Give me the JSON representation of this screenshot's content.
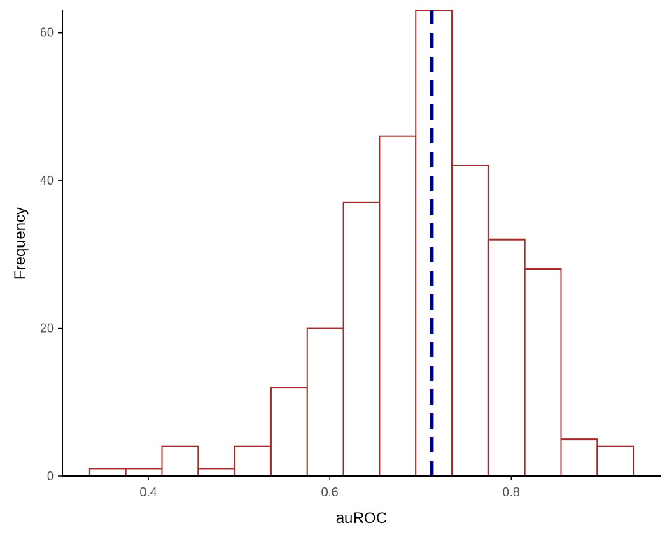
{
  "chart_data": {
    "type": "bar",
    "subtype": "histogram",
    "title": "",
    "xlabel": "auROC",
    "ylabel": "Frequency",
    "xlim": [
      0.305,
      0.965
    ],
    "ylim": [
      0,
      63
    ],
    "xticks": [
      0.4,
      0.6,
      0.8
    ],
    "xtick_labels": [
      "0.4",
      "0.6",
      "0.8"
    ],
    "yticks": [
      0,
      20,
      40,
      60
    ],
    "ytick_labels": [
      "0",
      "20",
      "40",
      "60"
    ],
    "bins": [
      {
        "start": 0.335,
        "end": 0.375,
        "count": 1
      },
      {
        "start": 0.375,
        "end": 0.415,
        "count": 1
      },
      {
        "start": 0.415,
        "end": 0.455,
        "count": 4
      },
      {
        "start": 0.455,
        "end": 0.495,
        "count": 1
      },
      {
        "start": 0.495,
        "end": 0.535,
        "count": 4
      },
      {
        "start": 0.535,
        "end": 0.575,
        "count": 12
      },
      {
        "start": 0.575,
        "end": 0.615,
        "count": 20
      },
      {
        "start": 0.615,
        "end": 0.655,
        "count": 37
      },
      {
        "start": 0.655,
        "end": 0.695,
        "count": 46
      },
      {
        "start": 0.695,
        "end": 0.735,
        "count": 63
      },
      {
        "start": 0.735,
        "end": 0.775,
        "count": 42
      },
      {
        "start": 0.775,
        "end": 0.815,
        "count": 32
      },
      {
        "start": 0.815,
        "end": 0.855,
        "count": 28
      },
      {
        "start": 0.855,
        "end": 0.895,
        "count": 5
      },
      {
        "start": 0.895,
        "end": 0.935,
        "count": 4
      }
    ],
    "reference_line": {
      "x": 0.7125,
      "style": "dashed"
    },
    "grid": false,
    "legend": "none",
    "colors": {
      "bar_outline": "#a52a2a",
      "bar_fill": "#ffffff",
      "reference_line": "#00008b",
      "axis": "#000000",
      "tick_label": "#4d4d4d"
    }
  }
}
